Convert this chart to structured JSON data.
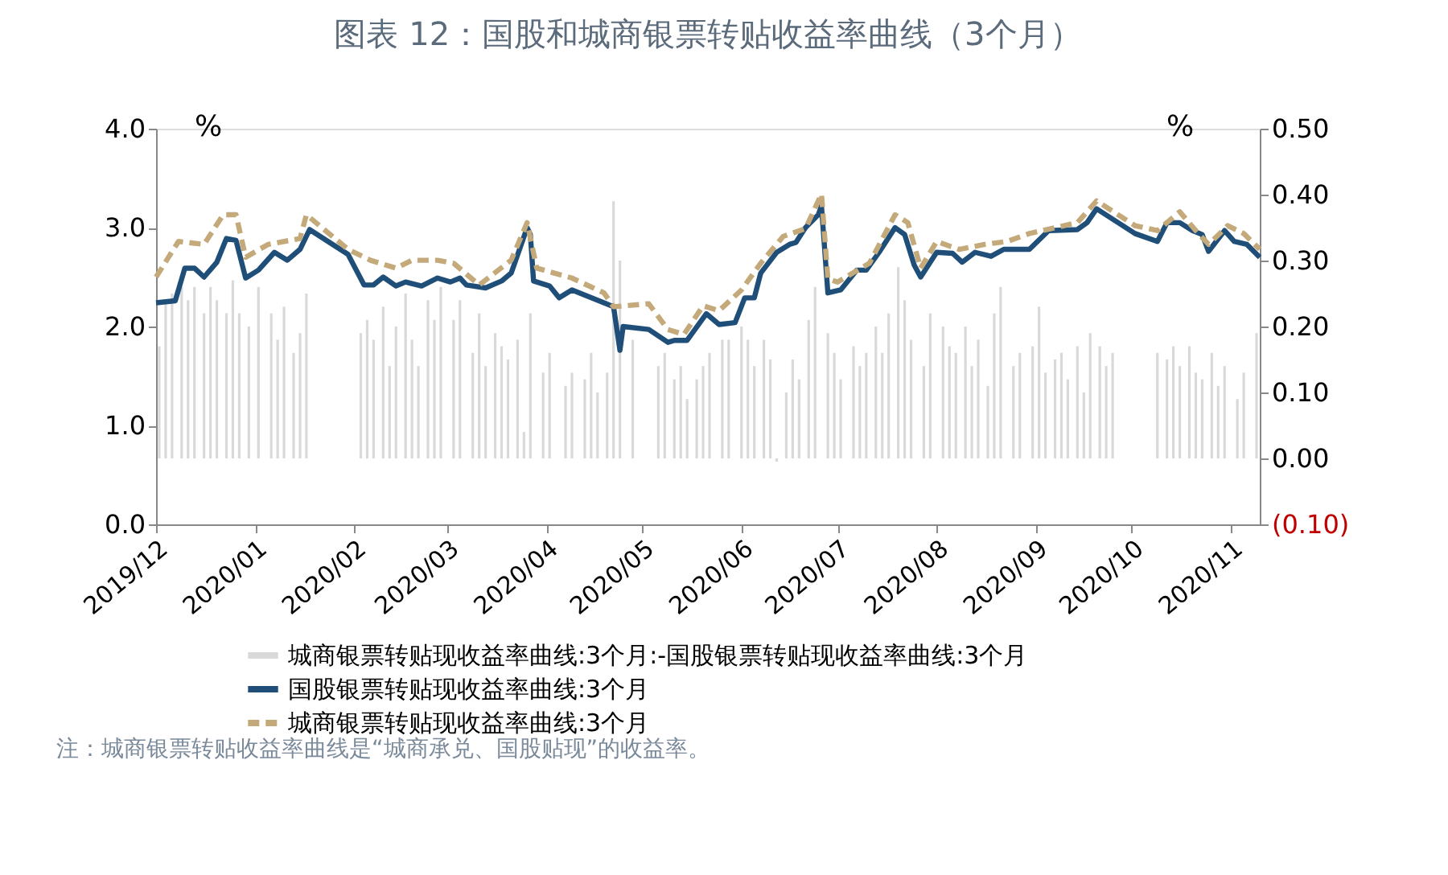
{
  "chart_data": {
    "type": "line",
    "title": "图表 12：国股和城商银票转贴收益率曲线（3个月）",
    "ylabel": "%",
    "y2label": "%",
    "annotations": [
      "注：城商银票转贴收益率曲线是“城商承兑、国股贴现”的收益率。"
    ],
    "xlim": [
      "2019-12-01",
      "2020-11-10"
    ],
    "xticks": [
      {
        "value": "2019-12-01",
        "label": "2019/12"
      },
      {
        "value": "2020-01-01",
        "label": "2020/01"
      },
      {
        "value": "2020-02-01",
        "label": "2020/02"
      },
      {
        "value": "2020-03-01",
        "label": "2020/03"
      },
      {
        "value": "2020-04-01",
        "label": "2020/04"
      },
      {
        "value": "2020-05-01",
        "label": "2020/05"
      },
      {
        "value": "2020-06-01",
        "label": "2020/06"
      },
      {
        "value": "2020-07-01",
        "label": "2020/07"
      },
      {
        "value": "2020-08-01",
        "label": "2020/08"
      },
      {
        "value": "2020-09-01",
        "label": "2020/09"
      },
      {
        "value": "2020-10-01",
        "label": "2020/10"
      },
      {
        "value": "2020-11-01",
        "label": "2020/11"
      }
    ],
    "ylim": [
      0,
      4
    ],
    "yticks": [
      {
        "value": 0,
        "label": "0.0"
      },
      {
        "value": 1,
        "label": "1.0"
      },
      {
        "value": 2,
        "label": "2.0"
      },
      {
        "value": 3,
        "label": "3.0"
      },
      {
        "value": 4,
        "label": "4.0"
      }
    ],
    "y2lim": [
      -0.1,
      0.5
    ],
    "y2ticks": [
      {
        "value": -0.1,
        "label": "(0.10)"
      },
      {
        "value": 0,
        "label": "0.00"
      },
      {
        "value": 0.1,
        "label": "0.10"
      },
      {
        "value": 0.2,
        "label": "0.20"
      },
      {
        "value": 0.3,
        "label": "0.30"
      },
      {
        "value": 0.4,
        "label": "0.40"
      },
      {
        "value": 0.5,
        "label": "0.50"
      }
    ],
    "grid": false,
    "legend": "bottom",
    "marker": "none",
    "series": [
      {
        "name": "城商银票转贴现收益率曲线:3个月:-国股银票转贴现收益率曲线:3个月",
        "type": "bar",
        "axis": "y2",
        "color": "#d9d9d9",
        "x": [
          "2019-12-02",
          "2019-12-04",
          "2019-12-06",
          "2019-12-09",
          "2019-12-11",
          "2019-12-13",
          "2019-12-16",
          "2019-12-18",
          "2019-12-20",
          "2019-12-23",
          "2019-12-25",
          "2019-12-27",
          "2019-12-30",
          "2020-01-02",
          "2020-01-06",
          "2020-01-08",
          "2020-01-10",
          "2020-01-13",
          "2020-01-15",
          "2020-01-17",
          "2020-02-03",
          "2020-02-05",
          "2020-02-07",
          "2020-02-10",
          "2020-02-12",
          "2020-02-14",
          "2020-02-17",
          "2020-02-19",
          "2020-02-21",
          "2020-02-24",
          "2020-02-26",
          "2020-02-28",
          "2020-03-03",
          "2020-03-05",
          "2020-03-09",
          "2020-03-11",
          "2020-03-13",
          "2020-03-16",
          "2020-03-18",
          "2020-03-20",
          "2020-03-23",
          "2020-03-25",
          "2020-03-27",
          "2020-03-31",
          "2020-04-02",
          "2020-04-07",
          "2020-04-09",
          "2020-04-13",
          "2020-04-15",
          "2020-04-17",
          "2020-04-20",
          "2020-04-22",
          "2020-04-24",
          "2020-04-28",
          "2020-05-06",
          "2020-05-08",
          "2020-05-11",
          "2020-05-13",
          "2020-05-15",
          "2020-05-18",
          "2020-05-20",
          "2020-05-22",
          "2020-05-26",
          "2020-05-28",
          "2020-06-01",
          "2020-06-03",
          "2020-06-05",
          "2020-06-08",
          "2020-06-10",
          "2020-06-12",
          "2020-06-15",
          "2020-06-17",
          "2020-06-19",
          "2020-06-22",
          "2020-06-24",
          "2020-06-28",
          "2020-06-30",
          "2020-07-02",
          "2020-07-06",
          "2020-07-08",
          "2020-07-10",
          "2020-07-13",
          "2020-07-15",
          "2020-07-17",
          "2020-07-20",
          "2020-07-22",
          "2020-07-24",
          "2020-07-28",
          "2020-07-30",
          "2020-08-03",
          "2020-08-05",
          "2020-08-07",
          "2020-08-10",
          "2020-08-12",
          "2020-08-14",
          "2020-08-17",
          "2020-08-19",
          "2020-08-21",
          "2020-08-25",
          "2020-08-27",
          "2020-08-31",
          "2020-09-02",
          "2020-09-04",
          "2020-09-07",
          "2020-09-09",
          "2020-09-11",
          "2020-09-14",
          "2020-09-16",
          "2020-09-18",
          "2020-09-21",
          "2020-09-23",
          "2020-09-25",
          "2020-10-09",
          "2020-10-12",
          "2020-10-14",
          "2020-10-16",
          "2020-10-19",
          "2020-10-21",
          "2020-10-23",
          "2020-10-26",
          "2020-10-28",
          "2020-10-30",
          "2020-11-03",
          "2020-11-05",
          "2020-11-09"
        ],
        "values": [
          0.17,
          0.24,
          0.25,
          0.26,
          0.24,
          0.26,
          0.22,
          0.26,
          0.24,
          0.22,
          0.27,
          0.22,
          0.2,
          0.26,
          0.22,
          0.18,
          0.23,
          0.16,
          0.19,
          0.25,
          0.19,
          0.21,
          0.18,
          0.23,
          0.14,
          0.2,
          0.25,
          0.18,
          0.14,
          0.24,
          0.21,
          0.26,
          0.21,
          0.24,
          0.16,
          0.22,
          0.14,
          0.19,
          0.17,
          0.15,
          0.18,
          0.04,
          0.22,
          0.13,
          0.16,
          0.11,
          0.13,
          0.12,
          0.16,
          0.1,
          0.13,
          0.39,
          0.3,
          0.18,
          0.14,
          0.16,
          0.12,
          0.14,
          0.09,
          0.12,
          0.14,
          0.16,
          0.18,
          0.18,
          0.2,
          0.18,
          0.14,
          0.18,
          0.15,
          -0.005,
          0.1,
          0.15,
          0.12,
          0.21,
          0.26,
          0.19,
          0.16,
          0.12,
          0.17,
          0.14,
          0.16,
          0.2,
          0.16,
          0.22,
          0.29,
          0.24,
          0.18,
          0.14,
          0.22,
          0.2,
          0.17,
          0.16,
          0.2,
          0.14,
          0.18,
          0.11,
          0.22,
          0.26,
          0.14,
          0.16,
          0.17,
          0.23,
          0.13,
          0.15,
          0.16,
          0.12,
          0.17,
          0.1,
          0.19,
          0.17,
          0.14,
          0.16,
          0.16,
          0.15,
          0.17,
          0.14,
          0.17,
          0.13,
          0.12,
          0.16,
          0.11,
          0.14,
          0.09,
          0.13,
          0.19
        ]
      },
      {
        "name": "国股银票转贴现收益率曲线:3个月",
        "line_style": "solid",
        "color": "#1f4e79",
        "x": [
          "2019-12-01",
          "2019-12-07",
          "2019-12-10",
          "2019-12-13",
          "2019-12-16",
          "2019-12-20",
          "2019-12-23",
          "2019-12-26",
          "2019-12-29",
          "2020-01-02",
          "2020-01-07",
          "2020-01-11",
          "2020-01-15",
          "2020-01-18",
          "2020-01-30",
          "2020-02-04",
          "2020-02-07",
          "2020-02-10",
          "2020-02-14",
          "2020-02-17",
          "2020-02-22",
          "2020-02-27",
          "2020-03-02",
          "2020-03-05",
          "2020-03-07",
          "2020-03-13",
          "2020-03-18",
          "2020-03-21",
          "2020-03-26",
          "2020-03-27",
          "2020-03-28",
          "2020-04-02",
          "2020-04-05",
          "2020-04-09",
          "2020-04-19",
          "2020-04-22",
          "2020-04-24",
          "2020-04-25",
          "2020-05-03",
          "2020-05-09",
          "2020-05-11",
          "2020-05-15",
          "2020-05-21",
          "2020-05-25",
          "2020-05-30",
          "2020-06-02",
          "2020-06-05",
          "2020-06-07",
          "2020-06-12",
          "2020-06-16",
          "2020-06-18",
          "2020-06-21",
          "2020-06-25",
          "2020-06-26",
          "2020-06-28",
          "2020-07-02",
          "2020-07-07",
          "2020-07-10",
          "2020-07-14",
          "2020-07-19",
          "2020-07-22",
          "2020-07-25",
          "2020-07-27",
          "2020-08-01",
          "2020-08-06",
          "2020-08-09",
          "2020-08-13",
          "2020-08-18",
          "2020-08-22",
          "2020-08-30",
          "2020-09-05",
          "2020-09-14",
          "2020-09-17",
          "2020-09-20",
          "2020-10-02",
          "2020-10-09",
          "2020-10-12",
          "2020-10-16",
          "2020-10-20",
          "2020-10-23",
          "2020-10-25",
          "2020-10-30",
          "2020-11-02",
          "2020-11-06",
          "2020-11-10"
        ],
        "values": [
          2.24,
          2.26,
          2.59,
          2.59,
          2.5,
          2.65,
          2.89,
          2.87,
          2.49,
          2.57,
          2.75,
          2.67,
          2.78,
          2.98,
          2.73,
          2.42,
          2.42,
          2.5,
          2.41,
          2.45,
          2.41,
          2.49,
          2.45,
          2.49,
          2.42,
          2.39,
          2.46,
          2.54,
          3.0,
          2.93,
          2.46,
          2.41,
          2.29,
          2.37,
          2.24,
          2.2,
          1.76,
          2.0,
          1.97,
          1.84,
          1.86,
          1.86,
          2.13,
          2.02,
          2.04,
          2.29,
          2.29,
          2.54,
          2.75,
          2.83,
          2.85,
          3.0,
          3.13,
          3.22,
          2.34,
          2.37,
          2.57,
          2.57,
          2.75,
          3.0,
          2.93,
          2.62,
          2.5,
          2.75,
          2.74,
          2.65,
          2.75,
          2.71,
          2.78,
          2.78,
          2.97,
          2.98,
          3.05,
          3.19,
          2.94,
          2.86,
          3.05,
          3.05,
          2.97,
          2.93,
          2.76,
          2.97,
          2.86,
          2.83,
          2.7
        ]
      },
      {
        "name": "城商银票转贴现收益率曲线:3个月",
        "line_style": "dashed",
        "color": "#c4a97a",
        "x": [
          "2019-12-01",
          "2019-12-08",
          "2019-12-16",
          "2019-12-22",
          "2019-12-26",
          "2019-12-29",
          "2020-01-05",
          "2020-01-15",
          "2020-01-17",
          "2020-01-30",
          "2020-02-06",
          "2020-02-14",
          "2020-02-19",
          "2020-02-27",
          "2020-03-03",
          "2020-03-11",
          "2020-03-21",
          "2020-03-26",
          "2020-03-29",
          "2020-04-09",
          "2020-04-19",
          "2020-04-22",
          "2020-05-03",
          "2020-05-09",
          "2020-05-14",
          "2020-05-20",
          "2020-05-25",
          "2020-06-01",
          "2020-06-07",
          "2020-06-14",
          "2020-06-21",
          "2020-06-26",
          "2020-06-28",
          "2020-07-01",
          "2020-07-11",
          "2020-07-19",
          "2020-07-23",
          "2020-07-27",
          "2020-08-01",
          "2020-08-08",
          "2020-08-16",
          "2020-08-23",
          "2020-08-30",
          "2020-09-14",
          "2020-09-20",
          "2020-10-02",
          "2020-10-09",
          "2020-10-16",
          "2020-10-21",
          "2020-10-25",
          "2020-10-31",
          "2020-11-05",
          "2020-11-10"
        ],
        "values": [
          2.5,
          2.86,
          2.83,
          3.13,
          3.13,
          2.7,
          2.83,
          2.89,
          3.13,
          2.78,
          2.67,
          2.59,
          2.67,
          2.67,
          2.64,
          2.42,
          2.67,
          3.05,
          2.59,
          2.49,
          2.34,
          2.2,
          2.23,
          1.97,
          1.92,
          2.21,
          2.16,
          2.37,
          2.64,
          2.91,
          2.99,
          3.34,
          2.48,
          2.45,
          2.64,
          3.13,
          3.05,
          2.59,
          2.86,
          2.78,
          2.83,
          2.86,
          2.94,
          3.05,
          3.27,
          3.02,
          2.97,
          3.16,
          2.97,
          2.83,
          3.02,
          2.94,
          2.78
        ]
      }
    ]
  }
}
